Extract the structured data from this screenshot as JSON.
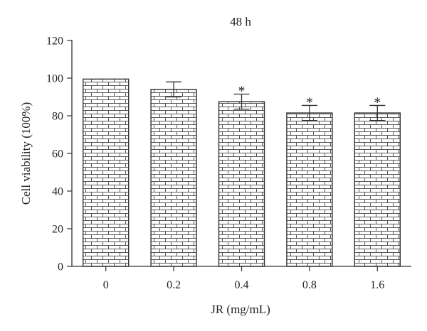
{
  "chart_data": {
    "type": "bar",
    "title": "48 h",
    "xlabel": "JR (mg/mL)",
    "ylabel": "Cell viability (100%)",
    "categories": [
      "0",
      "0.2",
      "0.4",
      "0.8",
      "1.6"
    ],
    "values": [
      99.5,
      94,
      87.5,
      81.5,
      81.5
    ],
    "errors": [
      0,
      4,
      4,
      4,
      4
    ],
    "annotations": [
      "",
      "",
      "*",
      "*",
      "*"
    ],
    "ylim": [
      0,
      120
    ],
    "yticks": [
      "0",
      "20",
      "40",
      "60",
      "80",
      "100",
      "120"
    ],
    "grid": false,
    "legend": "none",
    "bar_pattern": "brick",
    "colors": {
      "axis": "#333333",
      "bar_fill": "#ffffff",
      "bar_stroke": "#333333"
    }
  }
}
